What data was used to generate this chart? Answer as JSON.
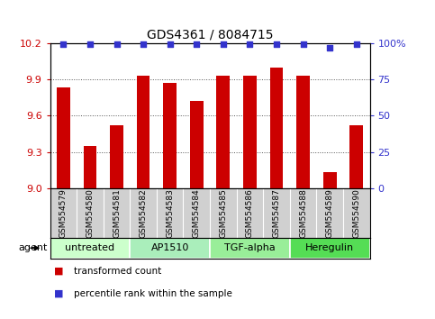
{
  "title": "GDS4361 / 8084715",
  "samples": [
    "GSM554579",
    "GSM554580",
    "GSM554581",
    "GSM554582",
    "GSM554583",
    "GSM554584",
    "GSM554585",
    "GSM554586",
    "GSM554587",
    "GSM554588",
    "GSM554589",
    "GSM554590"
  ],
  "bar_values": [
    9.83,
    9.35,
    9.52,
    9.93,
    9.87,
    9.72,
    9.93,
    9.93,
    10.0,
    9.93,
    9.13,
    9.52
  ],
  "percentile_values": [
    99,
    99,
    99,
    99,
    99,
    99,
    99,
    99,
    99.5,
    99,
    97,
    99
  ],
  "ylim_left": [
    9.0,
    10.2
  ],
  "ylim_right": [
    0,
    100
  ],
  "yticks_left": [
    9.0,
    9.3,
    9.6,
    9.9,
    10.2
  ],
  "yticks_right": [
    0,
    25,
    50,
    75,
    100
  ],
  "ytick_labels_right": [
    "0",
    "25",
    "50",
    "75",
    "100%"
  ],
  "bar_color": "#cc0000",
  "dot_color": "#3333cc",
  "bar_bottom": 9.0,
  "agent_groups": [
    {
      "label": "untreated",
      "indices": [
        0,
        1,
        2
      ],
      "color": "#ccffcc"
    },
    {
      "label": "AP1510",
      "indices": [
        3,
        4,
        5
      ],
      "color": "#99ee99"
    },
    {
      "label": "TGF-alpha",
      "indices": [
        6,
        7,
        8
      ],
      "color": "#88ee88"
    },
    {
      "label": "Heregulin",
      "indices": [
        9,
        10,
        11
      ],
      "color": "#44dd44"
    }
  ],
  "legend_items": [
    {
      "label": "transformed count",
      "color": "#cc0000"
    },
    {
      "label": "percentile rank within the sample",
      "color": "#3333cc"
    }
  ],
  "background_label": "#d0d0d0",
  "grid_color": "#555555"
}
